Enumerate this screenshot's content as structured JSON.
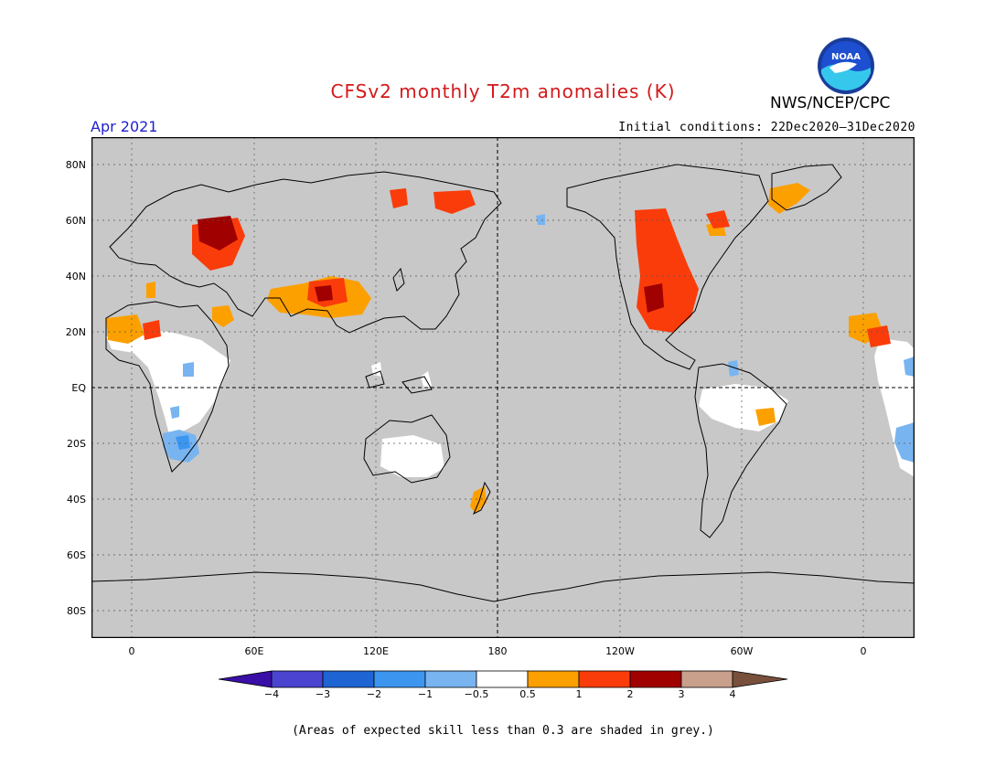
{
  "header": {
    "title": "CFSv2 monthly T2m anomalies (K)",
    "valid_month": "Apr 2021",
    "initial_conditions": "Initial conditions: 22Dec2020–31Dec2020",
    "organization": "NWS/NCEP/CPC",
    "logo_text": "NOAA"
  },
  "map": {
    "lat_labels": [
      "80N",
      "60N",
      "40N",
      "20N",
      "EQ",
      "20S",
      "40S",
      "60S",
      "80S"
    ],
    "lon_labels": [
      "0",
      "60E",
      "120E",
      "180",
      "120W",
      "60W",
      "0"
    ],
    "background_color": "#c8c8c8"
  },
  "legend": {
    "tick_labels": [
      "−4",
      "−3",
      "−2",
      "−1",
      "−0.5",
      "0.5",
      "1",
      "2",
      "3",
      "4"
    ],
    "colors": [
      "#3a0fa8",
      "#4a44d0",
      "#1e64d2",
      "#3c96f0",
      "#78b4f0",
      "#ffffff",
      "#fca000",
      "#fa3c0a",
      "#a00000",
      "#c8a08c",
      "#78503c"
    ]
  },
  "footnote": "(Areas of expected skill less than 0.3 are shaded in grey.)"
}
